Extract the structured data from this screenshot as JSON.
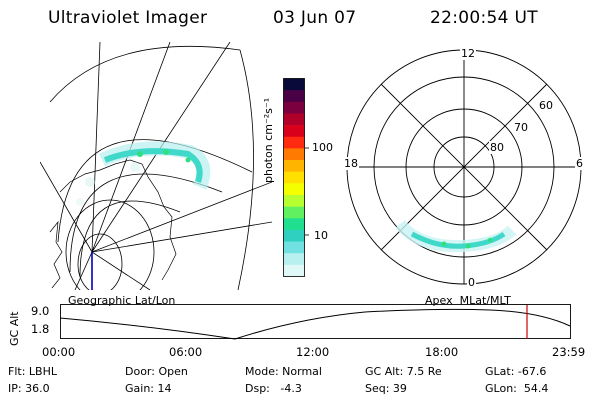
{
  "header": {
    "title": "Ultraviolet Imager",
    "date": "03 Jun 07",
    "time": "22:00:54 UT"
  },
  "colorbar": {
    "label": "photon cm⁻²s⁻¹",
    "ticks": [
      "100",
      "10"
    ],
    "colors": [
      "#0a0a3a",
      "#4a0044",
      "#7a0040",
      "#b0002a",
      "#d8001a",
      "#ff2a10",
      "#ff7a00",
      "#ffb400",
      "#ffe000",
      "#f4ff00",
      "#b8ff30",
      "#60f060",
      "#20e090",
      "#30d0c0",
      "#70e0e0",
      "#b8f0f0",
      "#e0f8f8"
    ]
  },
  "left_map": {
    "projection_label": "Geographic Lat/Lon"
  },
  "right_map": {
    "coord_label": "Apex  MLat/MLT",
    "mlt_labels": {
      "top": "12",
      "bottom": "0",
      "left": "18",
      "right": "6"
    },
    "lat_labels": [
      "60",
      "70",
      "80"
    ]
  },
  "timeline": {
    "axis_title": "GC Alt",
    "y_ticks": [
      "9.0",
      "1.8"
    ],
    "x_ticks": [
      "00:00",
      "06:00",
      "12:00",
      "18:00",
      "23:59"
    ],
    "cursor_color": "#d00000"
  },
  "info": {
    "flt": "Flt: LBHL",
    "ip": "IP: 36.0",
    "door": "Door: Open",
    "gain": "Gain: 14",
    "mode": "Mode: Normal",
    "dsp": "Dsp:   -4.3",
    "gcalt": "GC Alt: 7.5 Re",
    "seq": "Seq: 39",
    "glat": "GLat: -67.6",
    "glon": "GLon:  54.4"
  }
}
